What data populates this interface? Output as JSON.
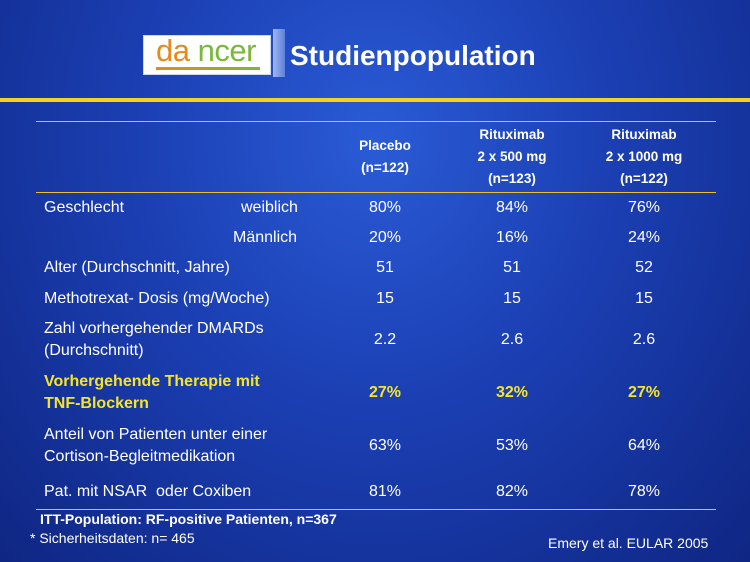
{
  "header": {
    "logo": "dancer",
    "title": "Studienpopulation"
  },
  "columns": [
    {
      "line1": "Placebo",
      "line2": "(n=122)"
    },
    {
      "line1": "Rituximab",
      "line2": "2 x 500 mg",
      "line3": "(n=123)"
    },
    {
      "line1": "Rituximab",
      "line2": "2 x 1000 mg",
      "line3": "(n=122)"
    }
  ],
  "rows": {
    "female": {
      "label": "Geschlecht",
      "sublabel": "weiblich",
      "values": [
        "80%",
        "84%",
        "76%"
      ]
    },
    "male": {
      "sublabel": "Männlich",
      "values": [
        "20%",
        "16%",
        "24%"
      ]
    },
    "age": {
      "label": "Alter (Durchschnitt, Jahre)",
      "values": [
        "51",
        "51",
        "52"
      ]
    },
    "mtx": {
      "label": "Methotrexat- Dosis (mg/Woche)",
      "values": [
        "15",
        "15",
        "15"
      ]
    },
    "dmards": {
      "label1": "Zahl vorhergehender DMARDs",
      "label2": "(Durchschnitt)",
      "values": [
        "2.2",
        "2.6",
        "2.6"
      ]
    },
    "tnf": {
      "label1": "Vorhergehende Therapie mit",
      "label2": "TNF-Blockern",
      "values": [
        "27%",
        "32%",
        "27%"
      ]
    },
    "cortison": {
      "label1": "Anteil von Patienten unter einer",
      "label2": "Cortison-Begleitmedikation",
      "values": [
        "63%",
        "53%",
        "64%"
      ]
    },
    "nsar": {
      "label": "Pat. mit NSAR  oder Coxiben",
      "values": [
        "81%",
        "82%",
        "78%"
      ]
    }
  },
  "footnotes": {
    "itt": "ITT-Population: RF-positive Patienten, n=367",
    "safety": "* Sicherheitsdaten: n= 465",
    "reference": "Emery et al. EULAR 2005"
  },
  "colors": {
    "accent": "#f5d21e",
    "highlight": "#f5e52a",
    "background": "#1b3fb3"
  }
}
